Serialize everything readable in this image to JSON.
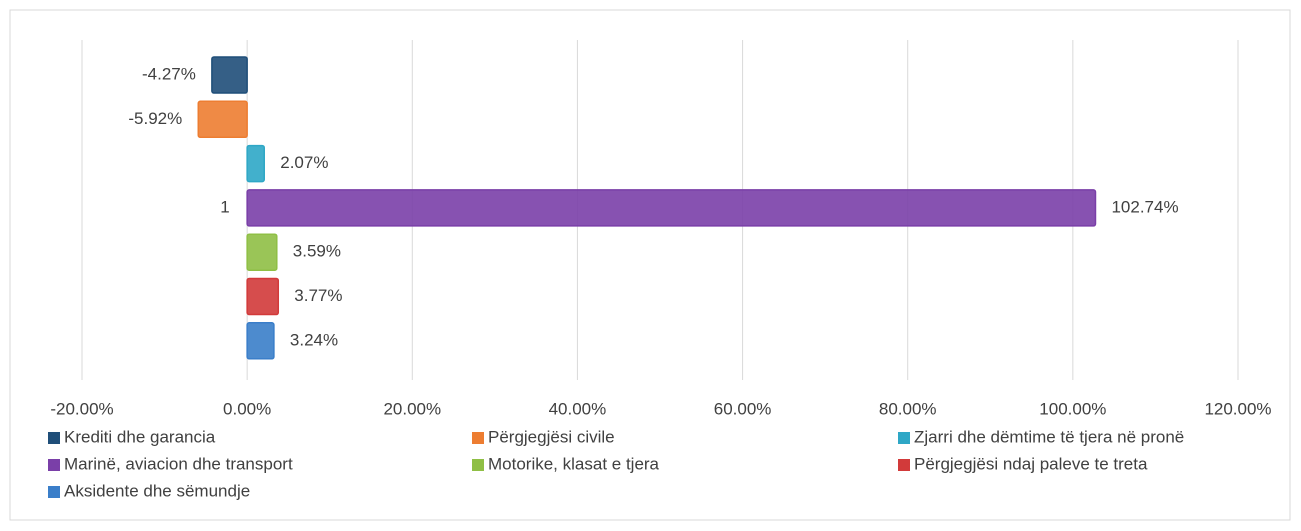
{
  "chart_data": {
    "type": "bar",
    "orientation": "horizontal",
    "categories": [
      "1"
    ],
    "series": [
      {
        "name": "Krediti dhe garancia",
        "color": "#1f4e79",
        "values": [
          -4.27
        ],
        "value_labels": [
          "-4.27%"
        ]
      },
      {
        "name": "Përgjegjësi civile",
        "color": "#ed7d31",
        "values": [
          -5.92
        ],
        "value_labels": [
          "-5.92%"
        ]
      },
      {
        "name": "Zjarri dhe dëmtime të tjera në pronë",
        "color": "#2ea7c6",
        "values": [
          2.07
        ],
        "value_labels": [
          "2.07%"
        ]
      },
      {
        "name": "Marinë, aviacion dhe transport",
        "color": "#7a3fa8",
        "values": [
          102.74
        ],
        "value_labels": [
          "102.74%"
        ]
      },
      {
        "name": "Motorike, klasat e tjera",
        "color": "#8fbf45",
        "values": [
          3.59
        ],
        "value_labels": [
          "3.59%"
        ]
      },
      {
        "name": "Përgjegjësi ndaj paleve te treta",
        "color": "#d23a3a",
        "values": [
          3.77
        ],
        "value_labels": [
          "3.77%"
        ]
      },
      {
        "name": "Aksidente dhe sëmundje",
        "color": "#3a7ec9",
        "values": [
          3.24
        ],
        "value_labels": [
          "3.24%"
        ]
      }
    ],
    "xlim": [
      -20,
      120
    ],
    "xticks": [
      {
        "value": -20,
        "label": "-20.00%"
      },
      {
        "value": 0,
        "label": "0.00%"
      },
      {
        "value": 20,
        "label": "20.00%"
      },
      {
        "value": 40,
        "label": "40.00%"
      },
      {
        "value": 60,
        "label": "60.00%"
      },
      {
        "value": 80,
        "label": "80.00%"
      },
      {
        "value": 100,
        "label": "100.00%"
      },
      {
        "value": 120,
        "label": "120.00%"
      }
    ],
    "grid": true,
    "legend": "bottom"
  }
}
